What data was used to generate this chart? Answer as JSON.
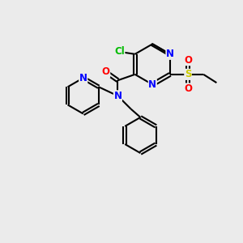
{
  "bg_color": "#ebebeb",
  "bond_color": "#000000",
  "bond_width": 1.5,
  "atom_colors": {
    "N": "#0000ff",
    "O": "#ff0000",
    "Cl": "#00bb00",
    "S": "#cccc00",
    "C": "#000000"
  },
  "font_size_atom": 8.5
}
